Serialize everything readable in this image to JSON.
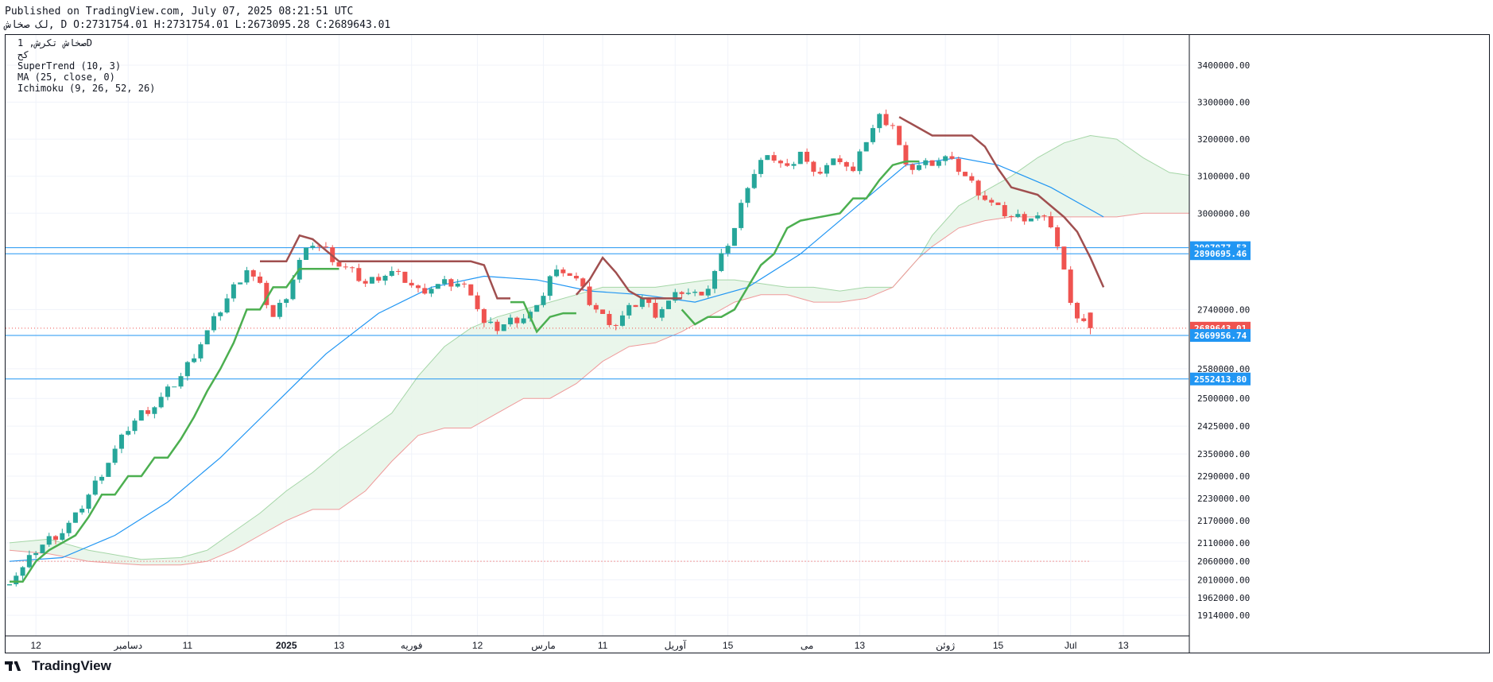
{
  "header": {
    "published": "Published on TradingView.com, July 07, 2025 08:21:51 UTC",
    "symbol_line": "لک صخاش, D O:2731754.01 H:2731754.01 L:2673095.28 C:2689643.01"
  },
  "legend": {
    "line1": "صخاش تکرش, 1D",
    "line2": "کح",
    "line3": "SuperTrend (10, 3)",
    "line4": "MA (25, close, 0)",
    "line5": "Ichimoku (9, 26, 52, 26)"
  },
  "footer": {
    "brand": "TradingView"
  },
  "colors": {
    "up": "#26a69a",
    "down": "#ef5350",
    "ma": "#2196f3",
    "st_up": "#4caf50",
    "st_down": "#a04f4f",
    "cloud_green": "#e8f5e9",
    "cloud_red": "#fdecea",
    "hline": "#2196f3",
    "last_price": "#ef5350"
  },
  "chart_data": {
    "type": "candlestick",
    "timeframe": "1D",
    "ylim": [
      1880000,
      3460000
    ],
    "y_ticks": [
      {
        "v": 3400000,
        "label": "3400000.00"
      },
      {
        "v": 3300000,
        "label": "3300000.00"
      },
      {
        "v": 3200000,
        "label": "3200000.00"
      },
      {
        "v": 3100000,
        "label": "3100000.00"
      },
      {
        "v": 3000000,
        "label": "3000000.00"
      },
      {
        "v": 2740000,
        "label": "2740000.00"
      },
      {
        "v": 2580000,
        "label": "2580000.00"
      },
      {
        "v": 2500000,
        "label": "2500000.00"
      },
      {
        "v": 2425000,
        "label": "2425000.00"
      },
      {
        "v": 2350000,
        "label": "2350000.00"
      },
      {
        "v": 2290000,
        "label": "2290000.00"
      },
      {
        "v": 2230000,
        "label": "2230000.00"
      },
      {
        "v": 2170000,
        "label": "2170000.00"
      },
      {
        "v": 2110000,
        "label": "2110000.00"
      },
      {
        "v": 2060000,
        "label": "2060000.00"
      },
      {
        "v": 2010000,
        "label": "2010000.00"
      },
      {
        "v": 1962000,
        "label": "1962000.00"
      },
      {
        "v": 1914000,
        "label": "1914000.00"
      }
    ],
    "price_tags": [
      {
        "v": 2907077.53,
        "label": "2907077.53",
        "color": "#2196f3"
      },
      {
        "v": 2890695.46,
        "label": "2890695.46",
        "color": "#2196f3"
      },
      {
        "v": 2689643.01,
        "label": "2689643.01",
        "color": "#ef5350"
      },
      {
        "v": 2669956.74,
        "label": "2669956.74",
        "color": "#2196f3"
      },
      {
        "v": 2552413.8,
        "label": "2552413.80",
        "color": "#2196f3"
      }
    ],
    "horizontal_lines": [
      2907077.53,
      2890695.46,
      2669956.74,
      2552413.8
    ],
    "x_ticks": [
      {
        "i": 4,
        "label": "12"
      },
      {
        "i": 18,
        "label": "دسامبر"
      },
      {
        "i": 27,
        "label": "11"
      },
      {
        "i": 42,
        "label": "2025",
        "bold": true
      },
      {
        "i": 50,
        "label": "13"
      },
      {
        "i": 61,
        "label": "فوریه"
      },
      {
        "i": 71,
        "label": "12"
      },
      {
        "i": 81,
        "label": "مارس"
      },
      {
        "i": 90,
        "label": "11"
      },
      {
        "i": 101,
        "label": "آوریل"
      },
      {
        "i": 109,
        "label": "15"
      },
      {
        "i": 121,
        "label": "می"
      },
      {
        "i": 129,
        "label": "13"
      },
      {
        "i": 142,
        "label": "ژوئن"
      },
      {
        "i": 150,
        "label": "15"
      },
      {
        "i": 161,
        "label": "Jul"
      },
      {
        "i": 169,
        "label": "13"
      }
    ],
    "series_anchor_index_span": [
      0,
      164
    ],
    "close_anchors": [
      [
        0,
        2010000
      ],
      [
        2,
        2040000
      ],
      [
        4,
        2090000
      ],
      [
        6,
        2120000
      ],
      [
        8,
        2140000
      ],
      [
        10,
        2180000
      ],
      [
        12,
        2240000
      ],
      [
        14,
        2300000
      ],
      [
        16,
        2360000
      ],
      [
        18,
        2420000
      ],
      [
        20,
        2460000
      ],
      [
        22,
        2480000
      ],
      [
        24,
        2520000
      ],
      [
        26,
        2560000
      ],
      [
        28,
        2620000
      ],
      [
        30,
        2680000
      ],
      [
        32,
        2740000
      ],
      [
        34,
        2800000
      ],
      [
        36,
        2850000
      ],
      [
        38,
        2800000
      ],
      [
        40,
        2720000
      ],
      [
        42,
        2780000
      ],
      [
        44,
        2870000
      ],
      [
        46,
        2920000
      ],
      [
        48,
        2900000
      ],
      [
        50,
        2860000
      ],
      [
        52,
        2840000
      ],
      [
        54,
        2810000
      ],
      [
        56,
        2830000
      ],
      [
        58,
        2840000
      ],
      [
        60,
        2820000
      ],
      [
        62,
        2790000
      ],
      [
        64,
        2800000
      ],
      [
        66,
        2810000
      ],
      [
        68,
        2810000
      ],
      [
        70,
        2790000
      ],
      [
        72,
        2700000
      ],
      [
        74,
        2690000
      ],
      [
        76,
        2710000
      ],
      [
        78,
        2720000
      ],
      [
        80,
        2740000
      ],
      [
        82,
        2830000
      ],
      [
        84,
        2850000
      ],
      [
        86,
        2820000
      ],
      [
        88,
        2760000
      ],
      [
        90,
        2720000
      ],
      [
        92,
        2700000
      ],
      [
        94,
        2740000
      ],
      [
        96,
        2770000
      ],
      [
        98,
        2730000
      ],
      [
        100,
        2760000
      ],
      [
        102,
        2790000
      ],
      [
        104,
        2780000
      ],
      [
        106,
        2800000
      ],
      [
        108,
        2880000
      ],
      [
        110,
        2960000
      ],
      [
        112,
        3080000
      ],
      [
        114,
        3140000
      ],
      [
        116,
        3150000
      ],
      [
        118,
        3120000
      ],
      [
        120,
        3170000
      ],
      [
        122,
        3100000
      ],
      [
        124,
        3130000
      ],
      [
        126,
        3150000
      ],
      [
        128,
        3110000
      ],
      [
        130,
        3200000
      ],
      [
        132,
        3260000
      ],
      [
        134,
        3240000
      ],
      [
        136,
        3120000
      ],
      [
        138,
        3130000
      ],
      [
        140,
        3140000
      ],
      [
        142,
        3150000
      ],
      [
        144,
        3120000
      ],
      [
        146,
        3080000
      ],
      [
        148,
        3040000
      ],
      [
        150,
        3010000
      ],
      [
        152,
        2990000
      ],
      [
        156,
        2990000
      ],
      [
        158,
        2970000
      ],
      [
        159,
        2910000
      ],
      [
        160,
        2840000
      ],
      [
        161,
        2770000
      ],
      [
        162,
        2720000
      ],
      [
        164,
        2689643.01
      ]
    ],
    "last_ohlc": {
      "open": 2731754.01,
      "high": 2731754.01,
      "low": 2673095.28,
      "close": 2689643.01
    },
    "supertrend": {
      "params": [
        10,
        3
      ],
      "up_segments": [
        [
          [
            0,
            2005000
          ],
          [
            2,
            2005000
          ],
          [
            4,
            2060000
          ],
          [
            6,
            2090000
          ],
          [
            10,
            2130000
          ],
          [
            12,
            2180000
          ],
          [
            14,
            2240000
          ],
          [
            16,
            2240000
          ],
          [
            18,
            2290000
          ],
          [
            20,
            2290000
          ],
          [
            22,
            2340000
          ],
          [
            24,
            2340000
          ],
          [
            26,
            2390000
          ],
          [
            28,
            2450000
          ],
          [
            30,
            2520000
          ],
          [
            32,
            2580000
          ],
          [
            34,
            2650000
          ],
          [
            36,
            2740000
          ],
          [
            38,
            2740000
          ],
          [
            40,
            2800000
          ],
          [
            42,
            2800000
          ],
          [
            44,
            2850000
          ],
          [
            48,
            2850000
          ],
          [
            50,
            2850000
          ]
        ],
        [
          [
            76,
            2760000
          ],
          [
            78,
            2760000
          ],
          [
            80,
            2680000
          ],
          [
            82,
            2720000
          ],
          [
            84,
            2730000
          ],
          [
            86,
            2730000
          ]
        ],
        [
          [
            102,
            2740000
          ],
          [
            104,
            2700000
          ],
          [
            106,
            2720000
          ],
          [
            108,
            2720000
          ],
          [
            110,
            2740000
          ],
          [
            112,
            2800000
          ],
          [
            114,
            2860000
          ],
          [
            116,
            2890000
          ],
          [
            118,
            2960000
          ],
          [
            120,
            2980000
          ],
          [
            126,
            3000000
          ],
          [
            128,
            3040000
          ],
          [
            130,
            3040000
          ],
          [
            132,
            3090000
          ],
          [
            134,
            3130000
          ],
          [
            136,
            3140000
          ],
          [
            138,
            3140000
          ]
        ]
      ],
      "down_segments": [
        [
          [
            38,
            2870000
          ],
          [
            42,
            2870000
          ],
          [
            44,
            2940000
          ],
          [
            46,
            2930000
          ],
          [
            48,
            2900000
          ],
          [
            50,
            2870000
          ],
          [
            52,
            2870000
          ],
          [
            54,
            2870000
          ],
          [
            70,
            2870000
          ],
          [
            72,
            2860000
          ],
          [
            74,
            2770000
          ],
          [
            76,
            2770000
          ]
        ],
        [
          [
            86,
            2780000
          ],
          [
            88,
            2820000
          ],
          [
            90,
            2880000
          ],
          [
            92,
            2840000
          ],
          [
            94,
            2790000
          ],
          [
            96,
            2770000
          ],
          [
            102,
            2770000
          ]
        ],
        [
          [
            135,
            3260000
          ],
          [
            138,
            3230000
          ],
          [
            140,
            3210000
          ],
          [
            146,
            3210000
          ],
          [
            148,
            3180000
          ],
          [
            150,
            3120000
          ],
          [
            152,
            3070000
          ],
          [
            156,
            3050000
          ],
          [
            158,
            3020000
          ],
          [
            160,
            2990000
          ],
          [
            162,
            2950000
          ],
          [
            164,
            2880000
          ],
          [
            166,
            2800000
          ]
        ]
      ]
    },
    "ma_25": [
      [
        0,
        2060000
      ],
      [
        8,
        2070000
      ],
      [
        16,
        2130000
      ],
      [
        24,
        2220000
      ],
      [
        32,
        2340000
      ],
      [
        40,
        2480000
      ],
      [
        48,
        2620000
      ],
      [
        56,
        2730000
      ],
      [
        64,
        2800000
      ],
      [
        72,
        2830000
      ],
      [
        80,
        2820000
      ],
      [
        88,
        2790000
      ],
      [
        96,
        2780000
      ],
      [
        104,
        2760000
      ],
      [
        112,
        2800000
      ],
      [
        120,
        2890000
      ],
      [
        128,
        3010000
      ],
      [
        136,
        3130000
      ],
      [
        144,
        3150000
      ],
      [
        150,
        3130000
      ],
      [
        158,
        3070000
      ],
      [
        166,
        2990000
      ]
    ],
    "ichimoku": {
      "params": [
        9,
        26,
        52,
        26
      ],
      "span_a": [
        [
          0,
          2110000
        ],
        [
          6,
          2120000
        ],
        [
          12,
          2090000
        ],
        [
          20,
          2065000
        ],
        [
          26,
          2070000
        ],
        [
          30,
          2090000
        ],
        [
          34,
          2140000
        ],
        [
          38,
          2190000
        ],
        [
          42,
          2250000
        ],
        [
          46,
          2300000
        ],
        [
          50,
          2360000
        ],
        [
          54,
          2410000
        ],
        [
          58,
          2460000
        ],
        [
          62,
          2560000
        ],
        [
          66,
          2640000
        ],
        [
          70,
          2690000
        ],
        [
          74,
          2720000
        ],
        [
          78,
          2740000
        ],
        [
          82,
          2760000
        ],
        [
          86,
          2780000
        ],
        [
          90,
          2800000
        ],
        [
          94,
          2800000
        ],
        [
          98,
          2800000
        ],
        [
          102,
          2810000
        ],
        [
          106,
          2820000
        ],
        [
          110,
          2820000
        ],
        [
          114,
          2810000
        ],
        [
          118,
          2800000
        ],
        [
          122,
          2800000
        ],
        [
          126,
          2790000
        ],
        [
          130,
          2800000
        ],
        [
          134,
          2800000
        ],
        [
          138,
          2880000
        ],
        [
          140,
          2940000
        ],
        [
          144,
          3020000
        ],
        [
          148,
          3060000
        ],
        [
          152,
          3100000
        ],
        [
          156,
          3150000
        ],
        [
          160,
          3190000
        ],
        [
          164,
          3210000
        ],
        [
          168,
          3200000
        ],
        [
          172,
          3150000
        ],
        [
          176,
          3110000
        ],
        [
          180,
          3100000
        ],
        [
          184,
          3090000
        ]
      ],
      "span_b": [
        [
          0,
          2090000
        ],
        [
          6,
          2080000
        ],
        [
          12,
          2060000
        ],
        [
          20,
          2050000
        ],
        [
          26,
          2050000
        ],
        [
          30,
          2060000
        ],
        [
          34,
          2090000
        ],
        [
          38,
          2130000
        ],
        [
          42,
          2170000
        ],
        [
          46,
          2200000
        ],
        [
          50,
          2200000
        ],
        [
          54,
          2250000
        ],
        [
          58,
          2330000
        ],
        [
          62,
          2400000
        ],
        [
          66,
          2420000
        ],
        [
          70,
          2420000
        ],
        [
          74,
          2460000
        ],
        [
          78,
          2500000
        ],
        [
          82,
          2500000
        ],
        [
          86,
          2540000
        ],
        [
          90,
          2600000
        ],
        [
          94,
          2640000
        ],
        [
          98,
          2650000
        ],
        [
          102,
          2680000
        ],
        [
          106,
          2720000
        ],
        [
          110,
          2760000
        ],
        [
          114,
          2780000
        ],
        [
          118,
          2780000
        ],
        [
          122,
          2760000
        ],
        [
          126,
          2760000
        ],
        [
          130,
          2770000
        ],
        [
          134,
          2800000
        ],
        [
          138,
          2880000
        ],
        [
          140,
          2910000
        ],
        [
          144,
          2960000
        ],
        [
          148,
          2980000
        ],
        [
          152,
          2990000
        ],
        [
          156,
          2990000
        ],
        [
          160,
          2990000
        ],
        [
          164,
          2990000
        ],
        [
          168,
          2990000
        ],
        [
          172,
          3000000
        ],
        [
          176,
          3000000
        ],
        [
          180,
          3000000
        ],
        [
          184,
          3000000
        ]
      ],
      "lagging_ref": 2060000
    }
  }
}
